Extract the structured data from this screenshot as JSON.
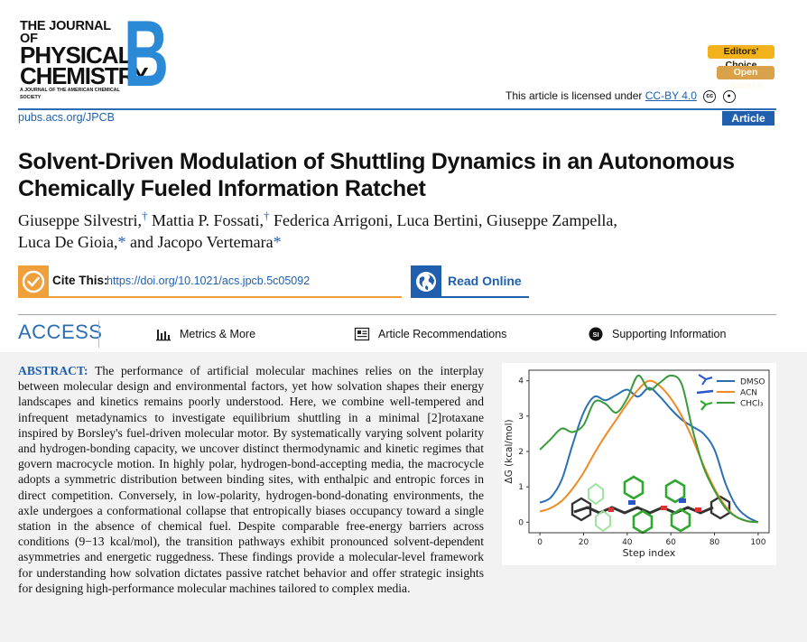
{
  "journal": {
    "line1": "THE JOURNAL OF",
    "line2": "PHYSICAL",
    "line3": "CHEMISTRY",
    "line4": "A JOURNAL OF THE AMERICAN CHEMICAL SOCIETY",
    "section_letter": "B",
    "brand_color": "#2b8ad6"
  },
  "badges": {
    "editors_choice": "Editors' Choice",
    "open_access": "Open Access"
  },
  "license": {
    "prefix": "This article is licensed under",
    "link": "CC-BY 4.0"
  },
  "url": "pubs.acs.org/JPCB",
  "article_type": "Article",
  "title": "Solvent-Driven Modulation of Shuttling Dynamics in an Autonomous Chemically Fueled Information Ratchet",
  "authors": [
    {
      "name": "Giuseppe Silvestri,",
      "mark": "†"
    },
    {
      "name": "Mattia P. Fossati,",
      "mark": "†"
    },
    {
      "name": "Federica Arrigoni,",
      "mark": ""
    },
    {
      "name": "Luca Bertini,",
      "mark": ""
    },
    {
      "name": "Giuseppe Zampella,",
      "mark": ""
    },
    {
      "name": "Luca De Gioia,",
      "mark": "*"
    },
    {
      "name": "and Jacopo Vertemara",
      "mark": "*"
    }
  ],
  "cite": {
    "label": "Cite This:",
    "doi": "https://doi.org/10.1021/acs.jpcb.5c05092"
  },
  "read_online": "Read Online",
  "access": {
    "label": "ACCESS",
    "metrics": "Metrics & More",
    "recommendations": "Article Recommendations",
    "supporting": "Supporting Information",
    "si_badge": "SI"
  },
  "abstract": {
    "label": "ABSTRACT:",
    "text": "The performance of artificial molecular machines relies on the interplay between molecular design and environmental factors, yet how solvation shapes their energy landscapes and kinetics remains poorly understood. Here, we combine well-tempered and infrequent metadynamics to investigate equilibrium shuttling in a minimal [2]rotaxane inspired by Borsley's fuel-driven molecular motor. By systematically varying solvent polarity and hydrogen-bonding capacity, we uncover distinct thermodynamic and kinetic regimes that govern macrocycle motion. In highly polar, hydrogen-bond-accepting media, the macrocycle adopts a symmetric distribution between binding sites, with enthalpic and entropic forces in direct competition. Conversely, in low-polarity, hydrogen-bond-donating environments, the axle undergoes a conformational collapse that entropically biases occupancy toward a single station in the absence of chemical fuel. Despite comparable free-energy barriers across conditions (9−13 kcal/mol), the transition pathways exhibit pronounced solvent-dependent asymmetries and energetic ruggedness. These findings provide a molecular-level framework for understanding how solvation dictates passive ratchet behavior and offer strategic insights for designing high-performance molecular machines tailored to complex media."
  },
  "chart_data": {
    "type": "line",
    "xlabel": "Step index",
    "ylabel": "ΔG (kcal/mol)",
    "xlim": [
      -5,
      105
    ],
    "ylim": [
      -0.3,
      4.3
    ],
    "xticks": [
      "0",
      "20",
      "40",
      "60",
      "80",
      "100"
    ],
    "yticks": [
      "0",
      "1",
      "2",
      "3",
      "4"
    ],
    "legend_position": "top-right",
    "series": [
      {
        "name": "DMSO",
        "color": "#2a6fb6",
        "x": [
          0,
          5,
          10,
          15,
          20,
          25,
          30,
          35,
          40,
          45,
          50,
          55,
          60,
          65,
          70,
          75,
          80,
          85,
          90,
          95,
          100
        ],
        "y": [
          0.55,
          0.7,
          1.2,
          2.2,
          3.1,
          3.55,
          3.45,
          3.6,
          3.75,
          3.55,
          3.8,
          3.55,
          3.2,
          2.9,
          2.7,
          2.5,
          2.05,
          1.1,
          0.45,
          0.15,
          0.0
        ]
      },
      {
        "name": "ACN",
        "color": "#f08a24",
        "x": [
          0,
          5,
          10,
          15,
          20,
          25,
          30,
          35,
          40,
          45,
          50,
          55,
          60,
          65,
          70,
          75,
          80,
          85,
          90,
          95,
          100
        ],
        "y": [
          0.3,
          0.4,
          0.6,
          0.95,
          1.4,
          1.95,
          2.45,
          2.9,
          3.35,
          3.75,
          4.0,
          3.85,
          3.5,
          3.0,
          2.35,
          1.6,
          0.95,
          0.45,
          0.15,
          0.03,
          0.0
        ]
      },
      {
        "name": "CHCl₃",
        "color": "#3a9a3a",
        "x": [
          0,
          5,
          10,
          15,
          20,
          25,
          30,
          35,
          40,
          45,
          50,
          55,
          60,
          65,
          70,
          75,
          80,
          85,
          90,
          95,
          100
        ],
        "y": [
          2.05,
          2.35,
          2.65,
          2.55,
          2.75,
          3.4,
          3.35,
          3.1,
          3.5,
          4.15,
          3.75,
          3.95,
          4.15,
          3.9,
          2.6,
          1.55,
          0.9,
          0.4,
          0.15,
          0.03,
          0.0
        ]
      }
    ]
  }
}
